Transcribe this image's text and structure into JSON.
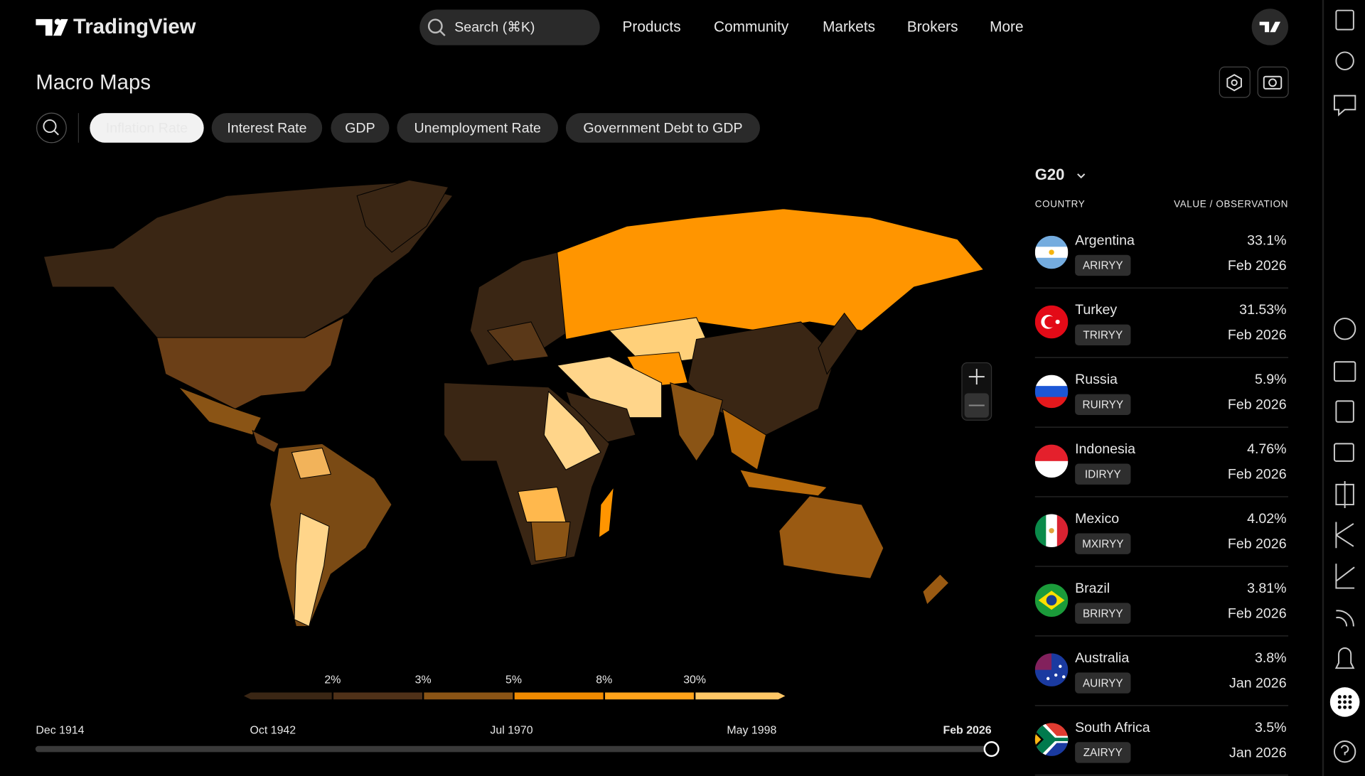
{
  "header": {
    "brand": "TradingView",
    "search": "Search (⌘K)",
    "nav": [
      "Products",
      "Community",
      "Markets",
      "Brokers",
      "More"
    ]
  },
  "page": {
    "title": "Macro Maps",
    "tabs": [
      "Inflation Rate",
      "Interest Rate",
      "GDP",
      "Unemployment Rate",
      "Government Debt to GDP"
    ]
  },
  "legend": {
    "labels": [
      "2%",
      "3%",
      "5%",
      "8%",
      "30%"
    ]
  },
  "timeline": {
    "labels": [
      "Dec 1914",
      "Oct 1942",
      "Jul 1970",
      "May 1998",
      "Feb 2026"
    ]
  },
  "panel": {
    "group": "G20",
    "columns": [
      "COUNTRY",
      "VALUE / OBSERVATION"
    ],
    "rows": [
      {
        "country": "Argentina",
        "ticker": "ARIRYY",
        "value": "33.1%",
        "date": "Feb 2026"
      },
      {
        "country": "Turkey",
        "ticker": "TRIRYY",
        "value": "31.53%",
        "date": "Feb 2026"
      },
      {
        "country": "Russia",
        "ticker": "RUIRYY",
        "value": "5.9%",
        "date": "Feb 2026"
      },
      {
        "country": "Indonesia",
        "ticker": "IDIRYY",
        "value": "4.76%",
        "date": "Feb 2026"
      },
      {
        "country": "Mexico",
        "ticker": "MXIRYY",
        "value": "4.02%",
        "date": "Feb 2026"
      },
      {
        "country": "Brazil",
        "ticker": "BRIRYY",
        "value": "3.81%",
        "date": "Feb 2026"
      },
      {
        "country": "Australia",
        "ticker": "AUIRYY",
        "value": "3.8%",
        "date": "Jan 2026"
      },
      {
        "country": "South Africa",
        "ticker": "ZAIRYY",
        "value": "3.5%",
        "date": "Jan 2026"
      }
    ]
  }
}
